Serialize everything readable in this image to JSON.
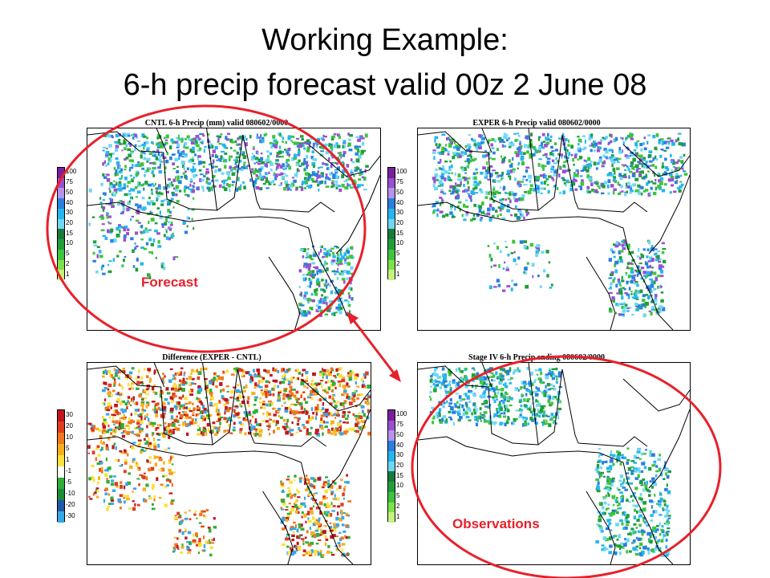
{
  "slide": {
    "title_line1": "Working Example:",
    "title_line2": "6-h precip forecast valid 00z 2 June 08"
  },
  "panels": {
    "cntl": {
      "title": "CNTL 6-h Precip (mm) valid 080602/0000"
    },
    "exper": {
      "title": "EXPER 6-h Precip valid 080602/0000"
    },
    "diff": {
      "title": "Difference (EXPER - CNTL)"
    },
    "obs": {
      "title": "Stage IV 6-h Precip ending 080602/0000"
    }
  },
  "legends": {
    "precip": {
      "labels": [
        "100",
        "75",
        "50",
        "40",
        "30",
        "20",
        "15",
        "10",
        "5",
        "2",
        "1"
      ],
      "colors": [
        "#7a1f9c",
        "#9a4fd0",
        "#b493e8",
        "#2a7fe0",
        "#26b6ef",
        "#6ed8f4",
        "#1a7a3a",
        "#1f9e3a",
        "#3fc43f",
        "#7ee04a",
        "#c4f27a"
      ]
    },
    "difference": {
      "labels": [
        "30",
        "20",
        "10",
        "5",
        "1",
        "-1",
        "-5",
        "-10",
        "-20",
        "-30"
      ],
      "colors": [
        "#c0141e",
        "#e23c1e",
        "#f0781e",
        "#f6b01e",
        "#fbe23a",
        "#ffffff",
        "#2fae3a",
        "#1f8a3a",
        "#1f5aa6",
        "#36a8e6"
      ]
    }
  },
  "annotations": {
    "forecast_label": "Forecast",
    "observations_label": "Observations",
    "accent_color": "#e8202a"
  }
}
